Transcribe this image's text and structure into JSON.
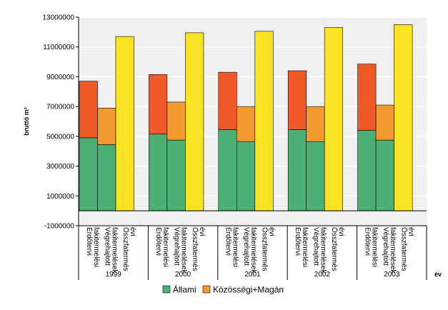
{
  "chart_data": {
    "type": "bar",
    "stacked": true,
    "ylabel": "bruttó m³",
    "xlabel": "év",
    "ylim": [
      -1000000,
      13000000
    ],
    "yticks": [
      "13000000",
      "11000000",
      "9000000",
      "7000000",
      "5000000",
      "3000000",
      "1000000",
      "-1000000"
    ],
    "ytick_values": [
      13000000,
      11000000,
      9000000,
      7000000,
      5000000,
      3000000,
      1000000,
      -1000000
    ],
    "grid": true,
    "legend_position": "bottom",
    "groups": [
      {
        "year": "1999",
        "bars": [
          {
            "label": "Erdőtervi fakitermelési",
            "Állami": 4900000,
            "Közösségi+Magán": 3800000
          },
          {
            "label": "Végrehajtott fakitermelések",
            "Állami": 4450000,
            "Közösségi+Magán": 2450000
          },
          {
            "label": "Összfatermés évi",
            "total": 11700000
          }
        ]
      },
      {
        "year": "2000",
        "bars": [
          {
            "label": "Erdőtervi fakitermelési",
            "Állami": 5150000,
            "Közösségi+Magán": 4000000
          },
          {
            "label": "Végrehajtott fakitermelések",
            "Állami": 4750000,
            "Közösségi+Magán": 2550000
          },
          {
            "label": "Összfatermés évi",
            "total": 11950000
          }
        ]
      },
      {
        "year": "2001",
        "bars": [
          {
            "label": "Erdőtervi fakitermelési",
            "Állami": 5450000,
            "Közösségi+Magán": 3850000
          },
          {
            "label": "Végrehajtott fakitermelések",
            "Állami": 4650000,
            "Közösségi+Magán": 2350000
          },
          {
            "label": "Összfatermés évi",
            "total": 12050000
          }
        ]
      },
      {
        "year": "2002",
        "bars": [
          {
            "label": "Erdőtervi fakitermelési",
            "Állami": 5450000,
            "Közösségi+Magán": 3950000
          },
          {
            "label": "Végrehajtott fakitermelések",
            "Állami": 4650000,
            "Közösségi+Magán": 2350000
          },
          {
            "label": "Összfatermés évi",
            "total": 12300000
          }
        ]
      },
      {
        "year": "2003",
        "bars": [
          {
            "label": "Erdőtervi fakitermelési",
            "Állami": 5400000,
            "Közösségi+Magán": 4450000
          },
          {
            "label": "Végrehajtott fakitermelések",
            "Állami": 4750000,
            "Közösségi+Magán": 2350000
          },
          {
            "label": "Összfatermés évi",
            "total": 12500000
          }
        ]
      }
    ],
    "series": [
      {
        "name": "Állami",
        "color": "#4caf73"
      },
      {
        "name": "Közösségi+Magán",
        "color": "#f39a2e"
      }
    ],
    "upper_color_planned": "#f05a28",
    "total_color": "#f9e324",
    "plot_background": "#f0f0f0"
  }
}
